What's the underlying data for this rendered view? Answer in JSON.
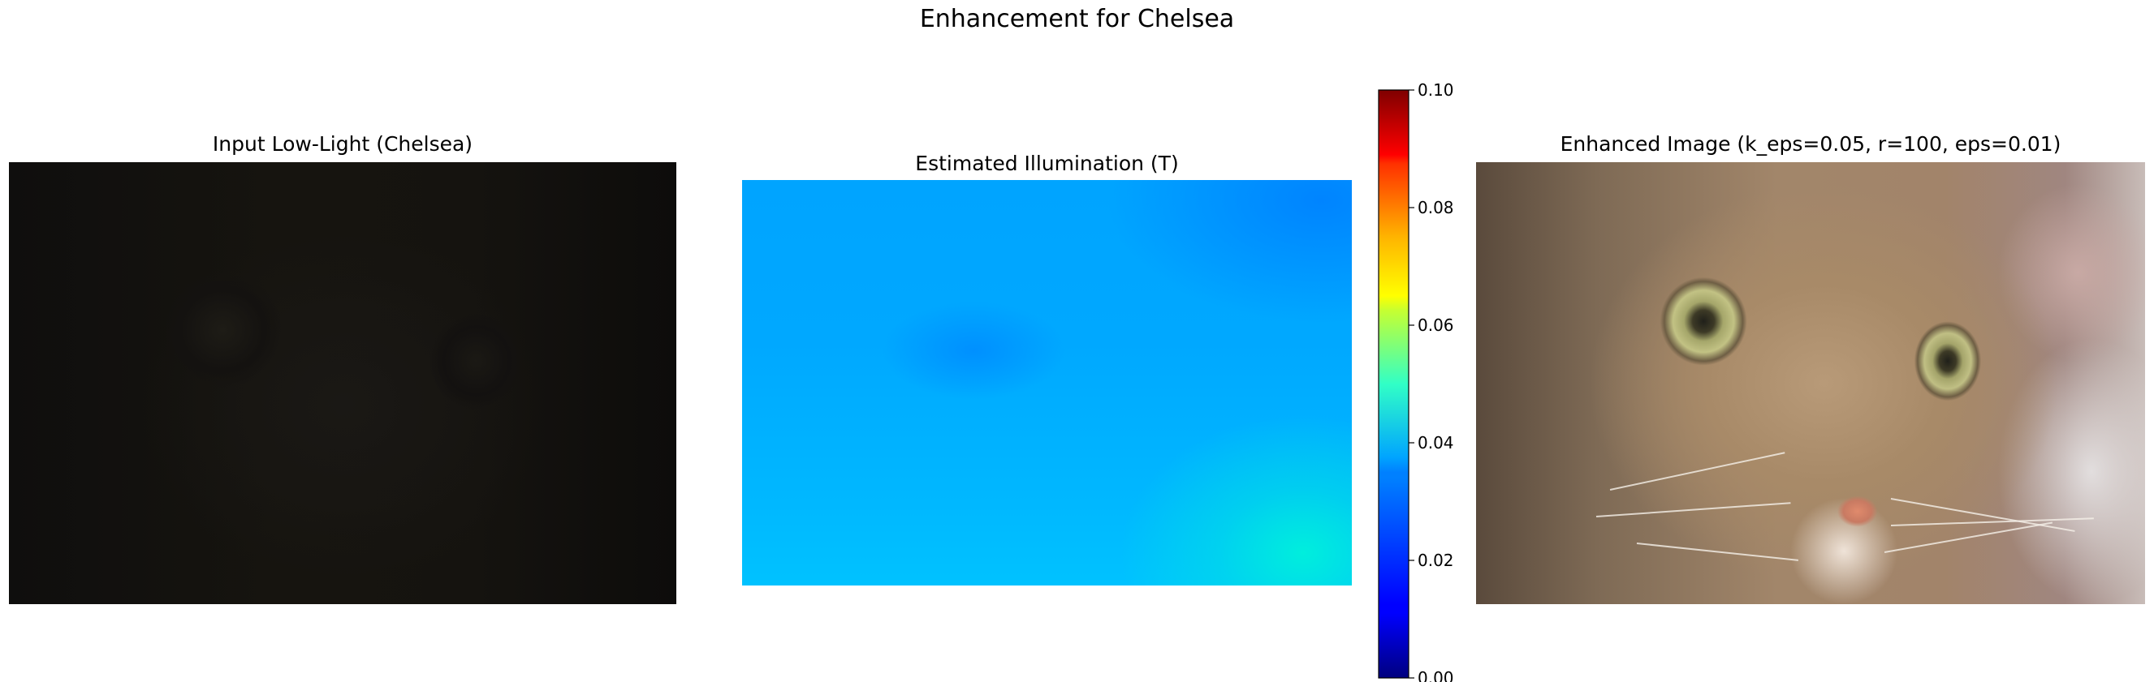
{
  "figure": {
    "suptitle": "Enhancement for Chelsea"
  },
  "panels": [
    {
      "title": "Input Low-Light (Chelsea)",
      "image": "chelsea-low-light"
    },
    {
      "title": "Estimated Illumination (T)",
      "image": "illumination-map"
    },
    {
      "title": "Enhanced Image (k_eps=0.05, r=100, eps=0.01)",
      "image": "chelsea-enhanced"
    }
  ],
  "chart_data": {
    "type": "heatmap",
    "title": "Estimated Illumination (T)",
    "colormap": "jet",
    "colorbar": {
      "range": [
        0.0,
        0.1
      ],
      "ticks": [
        0.0,
        0.02,
        0.04,
        0.06,
        0.08,
        0.1
      ],
      "tick_labels": [
        "0.00",
        "0.02",
        "0.04",
        "0.06",
        "0.08",
        "0.10"
      ]
    },
    "value_estimate": {
      "min": 0.028,
      "max": 0.038
    },
    "axes_visible": false
  }
}
